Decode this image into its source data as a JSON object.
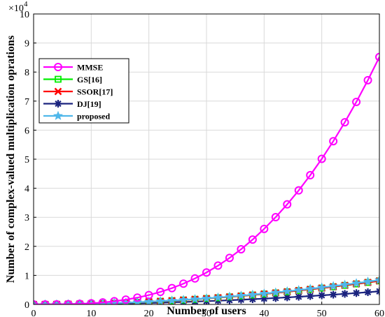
{
  "chart_data": {
    "type": "line",
    "xlabel": "Number of users",
    "ylabel": "Number of complex-valued multiplication oprations",
    "y_multiplier_label": "×10",
    "y_multiplier_exp": "4",
    "xlim": [
      0,
      60
    ],
    "ylim": [
      0,
      10
    ],
    "x_ticks": [
      "0",
      "10",
      "20",
      "30",
      "40",
      "50",
      "60"
    ],
    "y_ticks": [
      "0",
      "1",
      "2",
      "3",
      "4",
      "5",
      "6",
      "7",
      "8",
      "9",
      "10"
    ],
    "grid": true,
    "legend_position": "upper-left",
    "x": [
      0,
      2,
      4,
      6,
      8,
      10,
      12,
      14,
      16,
      18,
      20,
      22,
      24,
      26,
      28,
      30,
      32,
      34,
      36,
      38,
      40,
      42,
      44,
      46,
      48,
      50,
      52,
      54,
      56,
      58,
      60
    ],
    "series": [
      {
        "name": "MMSE",
        "color": "#ff00ff",
        "marker": "circle",
        "values": [
          0,
          0.0003,
          0.0025,
          0.0085,
          0.02,
          0.039,
          0.068,
          0.11,
          0.165,
          0.234,
          0.323,
          0.432,
          0.561,
          0.715,
          0.894,
          1.1,
          1.336,
          1.602,
          1.9,
          2.232,
          2.6,
          3.004,
          3.446,
          3.926,
          4.449,
          5.013,
          5.62,
          6.272,
          6.972,
          7.72,
          8.518
        ]
      },
      {
        "name": "GS[16]",
        "color": "#00ee00",
        "marker": "square",
        "values": [
          0,
          0.0009,
          0.0036,
          0.008,
          0.014,
          0.0225,
          0.032,
          0.044,
          0.058,
          0.073,
          0.09,
          0.109,
          0.13,
          0.152,
          0.176,
          0.203,
          0.23,
          0.26,
          0.292,
          0.325,
          0.36,
          0.397,
          0.436,
          0.476,
          0.518,
          0.563,
          0.608,
          0.656,
          0.706,
          0.757,
          0.81
        ]
      },
      {
        "name": "SSOR[17]",
        "color": "#ff0000",
        "marker": "x",
        "values": [
          0,
          0.0008,
          0.0036,
          0.0081,
          0.0144,
          0.0225,
          0.0324,
          0.0441,
          0.0576,
          0.0729,
          0.09,
          0.1089,
          0.1296,
          0.1521,
          0.1764,
          0.2025,
          0.2304,
          0.2601,
          0.2916,
          0.3249,
          0.36,
          0.3969,
          0.4356,
          0.4761,
          0.5184,
          0.5625,
          0.6084,
          0.6561,
          0.7056,
          0.7569,
          0.81
        ]
      },
      {
        "name": "DJ[19]",
        "color": "#1a237e",
        "marker": "asterisk",
        "values": [
          0,
          0.0005,
          0.002,
          0.0045,
          0.008,
          0.0125,
          0.018,
          0.0245,
          0.032,
          0.0405,
          0.05,
          0.0605,
          0.072,
          0.0845,
          0.098,
          0.1125,
          0.128,
          0.1445,
          0.162,
          0.1805,
          0.2,
          0.2205,
          0.242,
          0.2645,
          0.288,
          0.3125,
          0.338,
          0.3645,
          0.392,
          0.4205,
          0.45
        ]
      },
      {
        "name": "proposed",
        "color": "#4fb7ea",
        "marker": "star",
        "values": [
          0,
          0.0009,
          0.0037,
          0.0084,
          0.0149,
          0.0233,
          0.0336,
          0.0457,
          0.0597,
          0.0756,
          0.0933,
          0.1129,
          0.1344,
          0.1577,
          0.1829,
          0.21,
          0.2389,
          0.2697,
          0.3024,
          0.3369,
          0.3733,
          0.4116,
          0.4517,
          0.4937,
          0.5376,
          0.5833,
          0.6309,
          0.6804,
          0.7317,
          0.7849,
          0.84
        ]
      }
    ]
  }
}
